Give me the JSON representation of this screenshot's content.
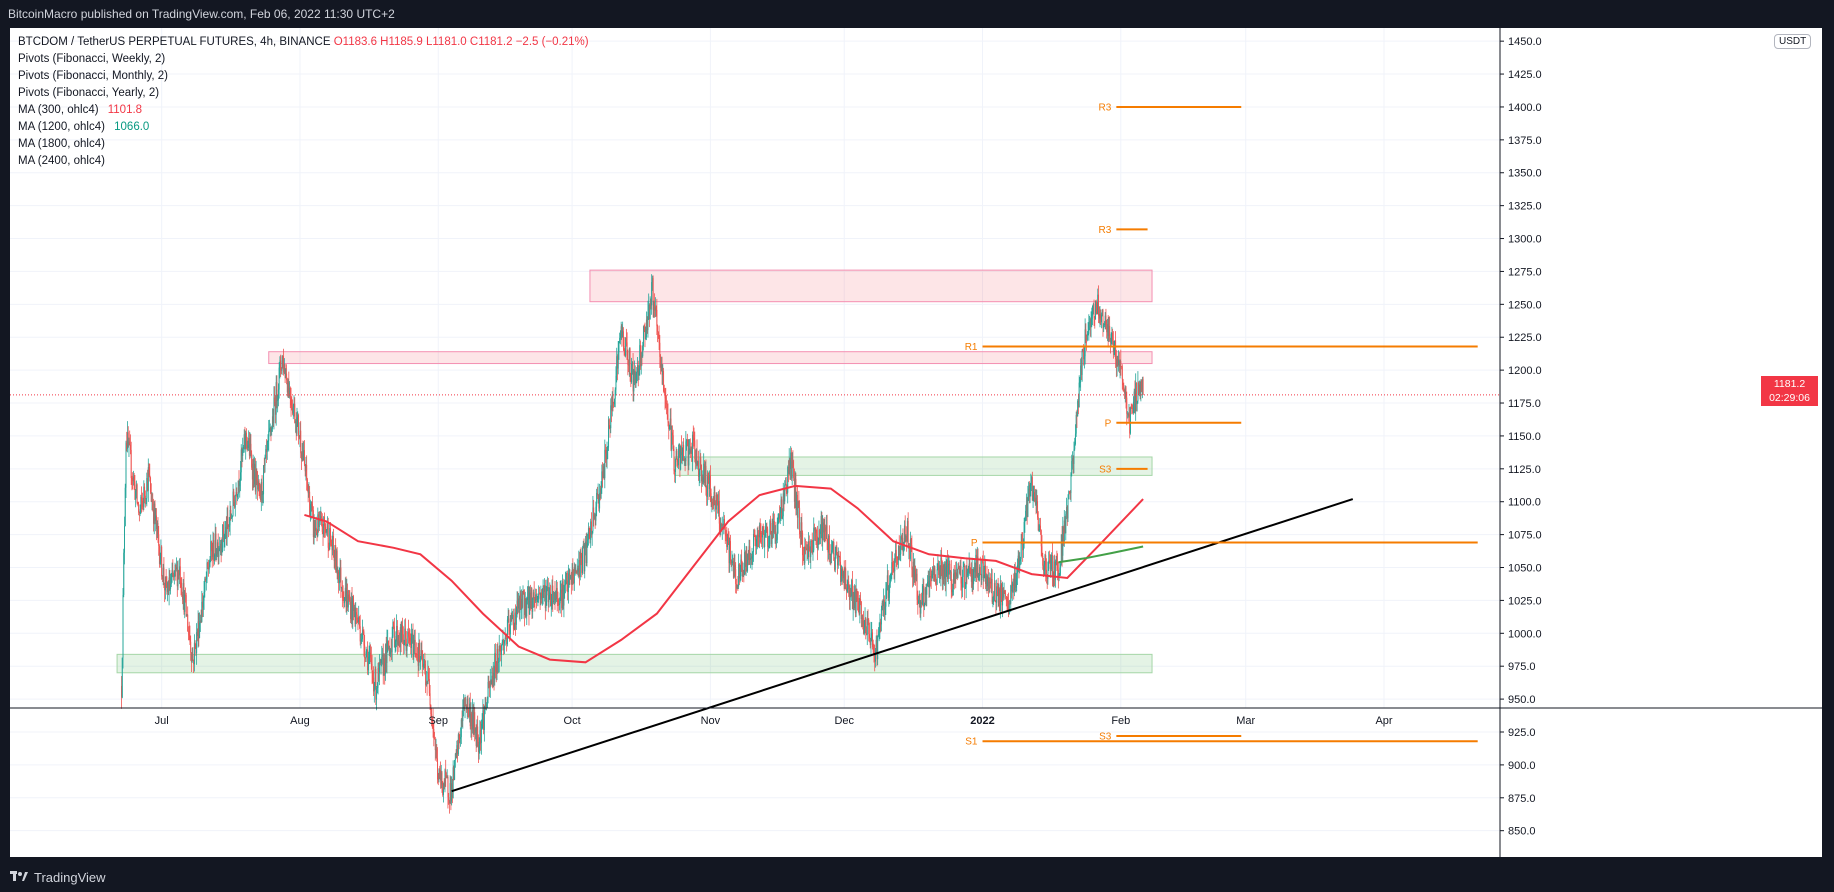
{
  "header": {
    "published_text": "BitcoinMacro published on TradingView.com, Feb 06, 2022 11:30 UTC+2"
  },
  "footer": {
    "brand": "TradingView"
  },
  "legend": {
    "symbol": "BTCDOM / TetherUS PERPETUAL FUTURES, 4h, BINANCE",
    "ohlc": "O1183.6 H1185.9 L1181.0 C1181.2 −2.5 (−0.21%)",
    "indicators": [
      {
        "label": "Pivots (Fibonacci, Weekly, 2)",
        "value": ""
      },
      {
        "label": "Pivots (Fibonacci, Monthly, 2)",
        "value": ""
      },
      {
        "label": "Pivots (Fibonacci, Yearly, 2)",
        "value": ""
      },
      {
        "label": "MA (300, ohlc4)",
        "value": "1101.8",
        "color": "#f23645"
      },
      {
        "label": "MA (1200, ohlc4)",
        "value": "1066.0",
        "color": "#089981"
      },
      {
        "label": "MA (1800, ohlc4)",
        "value": ""
      },
      {
        "label": "MA (2400, ohlc4)",
        "value": ""
      }
    ]
  },
  "price_scale": {
    "currency": "USDT",
    "last_price": "1181.2",
    "countdown": "02:29:06"
  },
  "chart_data": {
    "type": "candlestick",
    "y_ticks": [
      850,
      875,
      900,
      925,
      950,
      975,
      1000,
      1025,
      1050,
      1075,
      1100,
      1125,
      1150,
      1175,
      1200,
      1225,
      1250,
      1275,
      1300,
      1325,
      1350,
      1375,
      1400,
      1425,
      1450
    ],
    "x_ticks": [
      "Jul",
      "Aug",
      "Sep",
      "Oct",
      "Nov",
      "Dec",
      "2022",
      "Feb",
      "Mar",
      "Apr"
    ],
    "ylim": [
      830,
      1460
    ],
    "last_close": 1181.2,
    "price_path": [
      [
        "2021-06-22",
        960
      ],
      [
        "2021-06-23",
        1150
      ],
      [
        "2021-06-26",
        1090
      ],
      [
        "2021-06-28",
        1120
      ],
      [
        "2021-07-02",
        1030
      ],
      [
        "2021-07-05",
        1050
      ],
      [
        "2021-07-08",
        980
      ],
      [
        "2021-07-12",
        1060
      ],
      [
        "2021-07-16",
        1080
      ],
      [
        "2021-07-20",
        1150
      ],
      [
        "2021-07-23",
        1100
      ],
      [
        "2021-07-28",
        1210
      ],
      [
        "2021-08-01",
        1150
      ],
      [
        "2021-08-04",
        1080
      ],
      [
        "2021-08-07",
        1080
      ],
      [
        "2021-08-11",
        1030
      ],
      [
        "2021-08-14",
        1010
      ],
      [
        "2021-08-18",
        960
      ],
      [
        "2021-08-22",
        1000
      ],
      [
        "2021-08-27",
        990
      ],
      [
        "2021-08-30",
        960
      ],
      [
        "2021-09-01",
        890
      ],
      [
        "2021-09-04",
        880
      ],
      [
        "2021-09-07",
        950
      ],
      [
        "2021-09-10",
        920
      ],
      [
        "2021-09-14",
        980
      ],
      [
        "2021-09-19",
        1020
      ],
      [
        "2021-09-24",
        1030
      ],
      [
        "2021-09-29",
        1030
      ],
      [
        "2021-10-04",
        1060
      ],
      [
        "2021-10-08",
        1120
      ],
      [
        "2021-10-12",
        1230
      ],
      [
        "2021-10-15",
        1190
      ],
      [
        "2021-10-19",
        1260
      ],
      [
        "2021-10-21",
        1200
      ],
      [
        "2021-10-24",
        1130
      ],
      [
        "2021-10-28",
        1140
      ],
      [
        "2021-11-02",
        1100
      ],
      [
        "2021-11-07",
        1040
      ],
      [
        "2021-11-11",
        1070
      ],
      [
        "2021-11-16",
        1080
      ],
      [
        "2021-11-19",
        1130
      ],
      [
        "2021-11-22",
        1060
      ],
      [
        "2021-11-26",
        1080
      ],
      [
        "2021-11-30",
        1050
      ],
      [
        "2021-12-04",
        1020
      ],
      [
        "2021-12-08",
        985
      ],
      [
        "2021-12-11",
        1040
      ],
      [
        "2021-12-15",
        1080
      ],
      [
        "2021-12-18",
        1020
      ],
      [
        "2021-12-22",
        1050
      ],
      [
        "2021-12-26",
        1040
      ],
      [
        "2021-12-31",
        1050
      ],
      [
        "2022-01-04",
        1030
      ],
      [
        "2022-01-07",
        1020
      ],
      [
        "2022-01-10",
        1070
      ],
      [
        "2022-01-12",
        1115
      ],
      [
        "2022-01-15",
        1050
      ],
      [
        "2022-01-18",
        1050
      ],
      [
        "2022-01-21",
        1120
      ],
      [
        "2022-01-23",
        1200
      ],
      [
        "2022-01-25",
        1240
      ],
      [
        "2022-01-27",
        1250
      ],
      [
        "2022-01-30",
        1220
      ],
      [
        "2022-02-01",
        1200
      ],
      [
        "2022-02-03",
        1160
      ],
      [
        "2022-02-05",
        1190
      ],
      [
        "2022-02-06",
        1181
      ]
    ],
    "ma_300": [
      [
        "2021-08-02",
        1090
      ],
      [
        "2021-08-07",
        1085
      ],
      [
        "2021-08-14",
        1070
      ],
      [
        "2021-08-22",
        1065
      ],
      [
        "2021-08-28",
        1060
      ],
      [
        "2021-09-04",
        1040
      ],
      [
        "2021-09-11",
        1015
      ],
      [
        "2021-09-19",
        990
      ],
      [
        "2021-09-26",
        980
      ],
      [
        "2021-10-04",
        978
      ],
      [
        "2021-10-12",
        995
      ],
      [
        "2021-10-20",
        1015
      ],
      [
        "2021-10-28",
        1050
      ],
      [
        "2021-11-05",
        1085
      ],
      [
        "2021-11-12",
        1105
      ],
      [
        "2021-11-20",
        1112
      ],
      [
        "2021-11-28",
        1110
      ],
      [
        "2021-12-04",
        1095
      ],
      [
        "2021-12-12",
        1070
      ],
      [
        "2021-12-20",
        1060
      ],
      [
        "2021-12-28",
        1057
      ],
      [
        "2022-01-04",
        1055
      ],
      [
        "2022-01-12",
        1045
      ],
      [
        "2022-01-20",
        1042
      ],
      [
        "2022-01-28",
        1070
      ],
      [
        "2022-02-06",
        1102
      ]
    ],
    "ma_1200": [
      [
        "2022-01-18",
        1054
      ],
      [
        "2022-01-24",
        1057
      ],
      [
        "2022-01-30",
        1061
      ],
      [
        "2022-02-06",
        1066
      ]
    ],
    "trendline": [
      [
        "2021-09-04",
        880
      ],
      [
        "2022-03-25",
        1102
      ]
    ],
    "zones": [
      {
        "kind": "resistance",
        "start": "2021-10-05",
        "end": "2022-02-08",
        "y1": 1252,
        "y2": 1276
      },
      {
        "kind": "resistance",
        "start": "2021-07-25",
        "end": "2022-02-08",
        "y1": 1205,
        "y2": 1214
      },
      {
        "kind": "support",
        "start": "2021-10-24",
        "end": "2022-02-08",
        "y1": 1120,
        "y2": 1134
      },
      {
        "kind": "support",
        "start": "2021-06-21",
        "end": "2022-02-08",
        "y1": 970,
        "y2": 984
      }
    ],
    "pivot_levels": [
      {
        "label": "R3",
        "start": "2022-01-31",
        "end": "2022-02-28",
        "y": 1400
      },
      {
        "label": "R3",
        "start": "2022-01-31",
        "end": "2022-02-07",
        "y": 1307
      },
      {
        "label": "R1",
        "start": "2022-01-01",
        "end": "2022-04-22",
        "y": 1218
      },
      {
        "label": "P",
        "start": "2022-01-31",
        "end": "2022-02-28",
        "y": 1160
      },
      {
        "label": "S3",
        "start": "2022-01-31",
        "end": "2022-02-07",
        "y": 1125
      },
      {
        "label": "P",
        "start": "2022-01-01",
        "end": "2022-04-22",
        "y": 1069
      },
      {
        "label": "S3",
        "start": "2022-01-31",
        "end": "2022-02-28",
        "y": 922
      },
      {
        "label": "S1",
        "start": "2022-01-01",
        "end": "2022-04-22",
        "y": 918
      }
    ],
    "colors": {
      "up": "#26a69a",
      "down": "#ef5350",
      "ma_300": "#f23645",
      "ma_1200": "#43a047",
      "pivot": "#f57c00",
      "trendline": "#000000"
    }
  }
}
